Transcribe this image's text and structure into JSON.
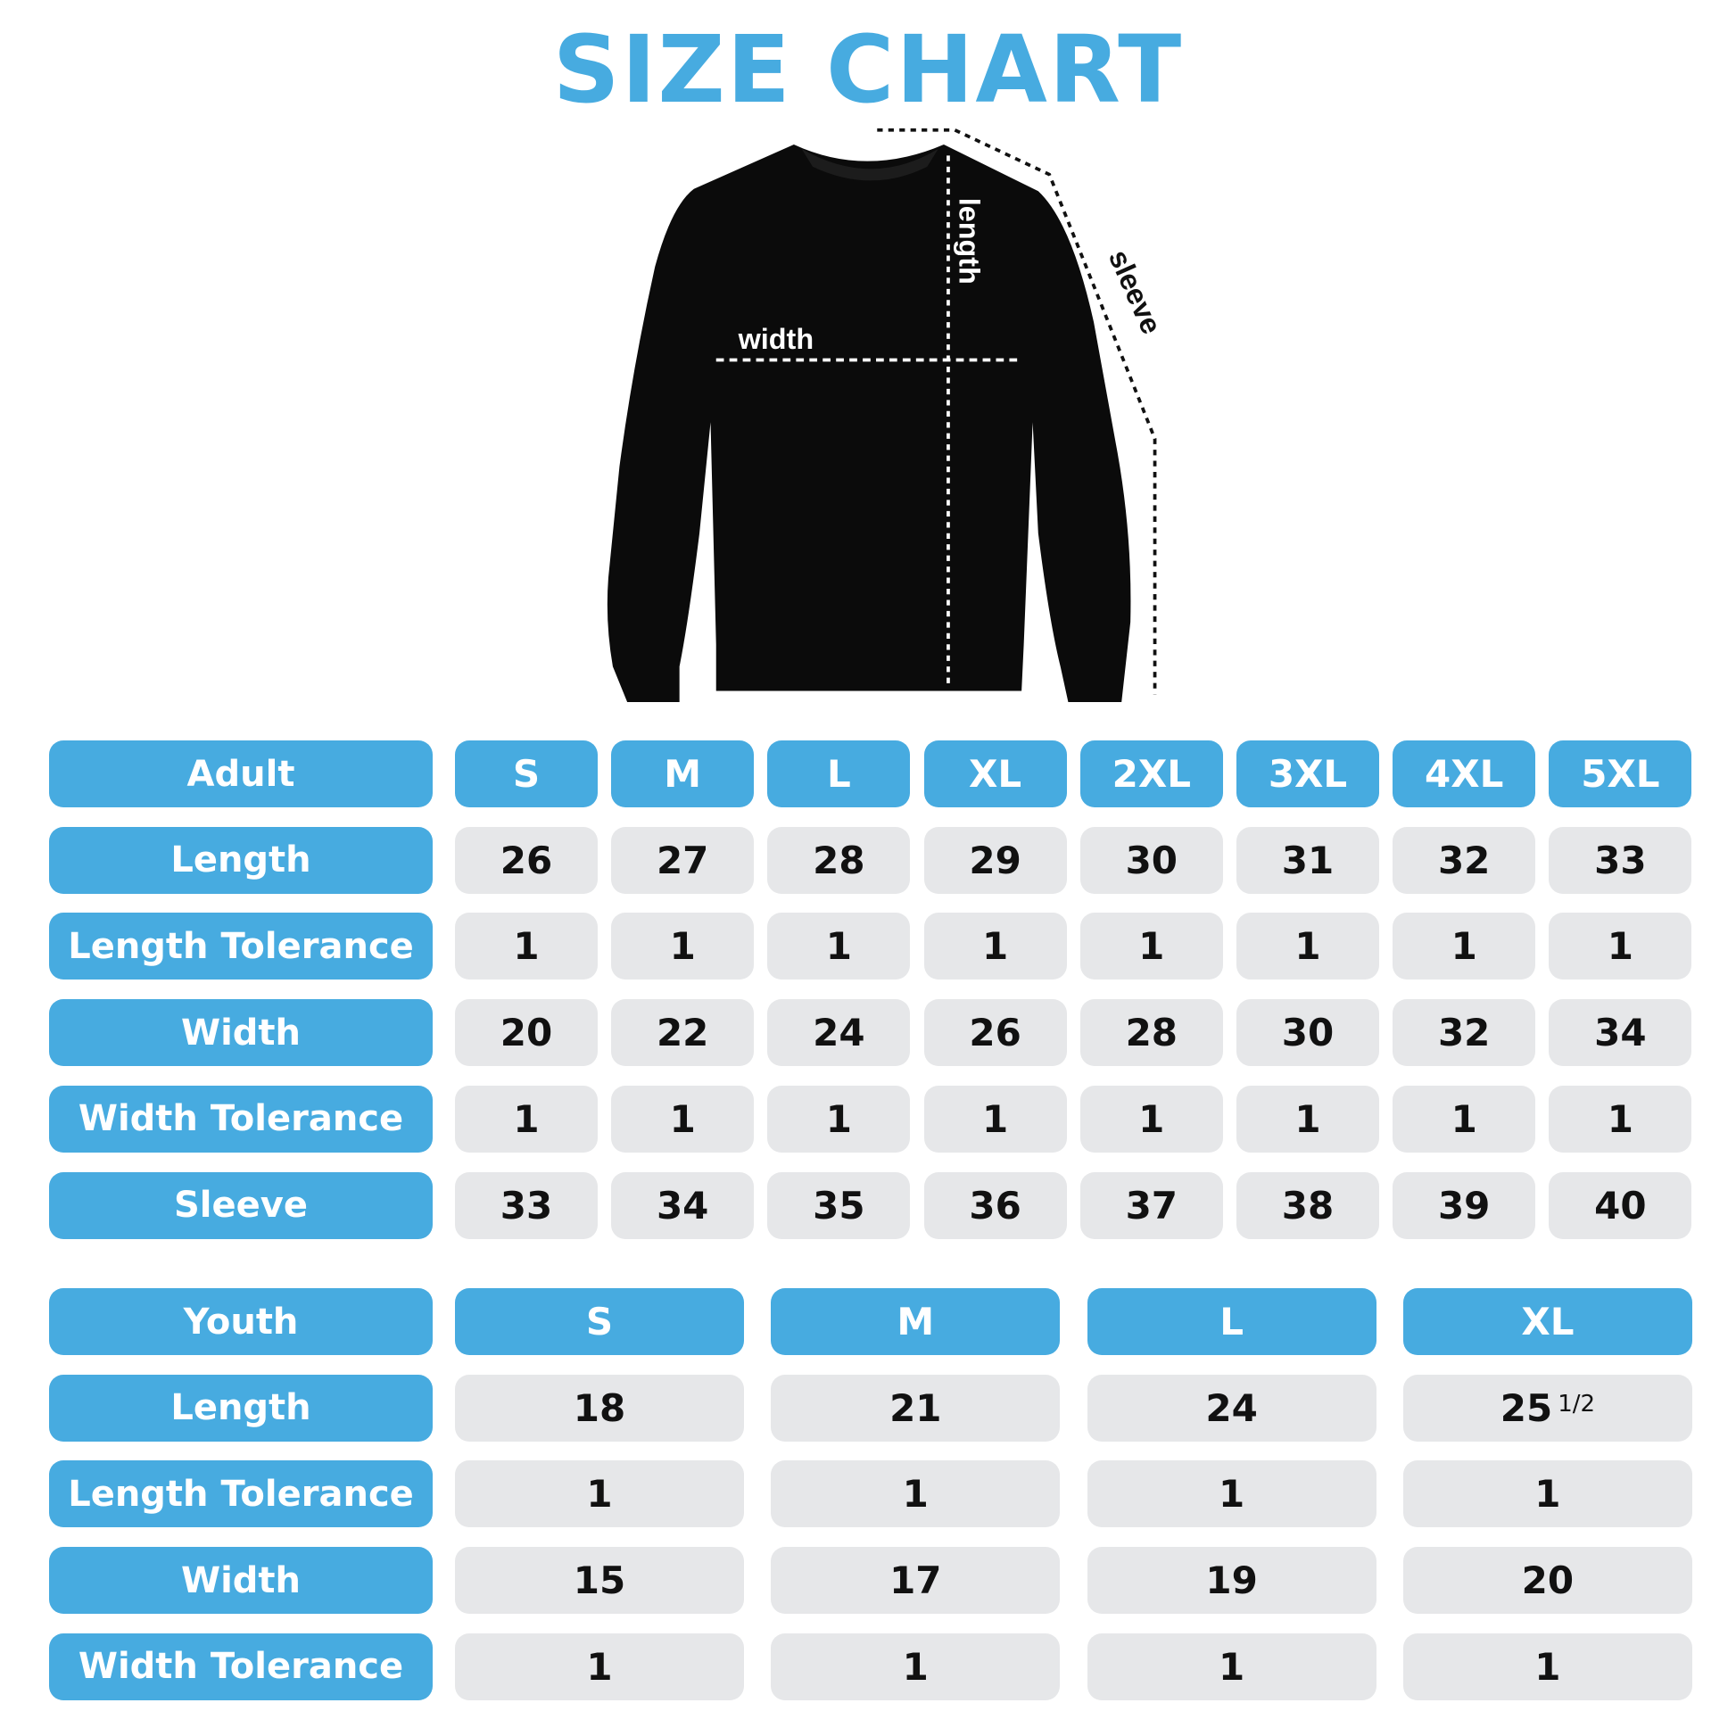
{
  "title": "SIZE CHART",
  "colors": {
    "accent": "#47ABE0",
    "cell_bg": "#E6E7E9",
    "text": "#111111"
  },
  "diagram": {
    "image": "black crewneck sweatshirt",
    "labels": {
      "width": "width",
      "length": "length",
      "sleeve": "sleeve"
    }
  },
  "adult": {
    "header": "Adult",
    "sizes": [
      "S",
      "M",
      "L",
      "XL",
      "2XL",
      "3XL",
      "4XL",
      "5XL"
    ],
    "rows": [
      {
        "label": "Length",
        "values": [
          "26",
          "27",
          "28",
          "29",
          "30",
          "31",
          "32",
          "33"
        ]
      },
      {
        "label": "Length Tolerance",
        "values": [
          "1",
          "1",
          "1",
          "1",
          "1",
          "1",
          "1",
          "1"
        ]
      },
      {
        "label": "Width",
        "values": [
          "20",
          "22",
          "24",
          "26",
          "28",
          "30",
          "32",
          "34"
        ]
      },
      {
        "label": "Width Tolerance",
        "values": [
          "1",
          "1",
          "1",
          "1",
          "1",
          "1",
          "1",
          "1"
        ]
      },
      {
        "label": "Sleeve",
        "values": [
          "33",
          "34",
          "35",
          "36",
          "37",
          "38",
          "39",
          "40"
        ]
      }
    ]
  },
  "youth": {
    "header": "Youth",
    "sizes": [
      "S",
      "M",
      "L",
      "XL"
    ],
    "rows": [
      {
        "label": "Length",
        "values": [
          "18",
          "21",
          "24",
          "25 1/2"
        ]
      },
      {
        "label": "Length Tolerance",
        "values": [
          "1",
          "1",
          "1",
          "1"
        ]
      },
      {
        "label": "Width",
        "values": [
          "15",
          "17",
          "19",
          "20"
        ]
      },
      {
        "label": "Width Tolerance",
        "values": [
          "1",
          "1",
          "1",
          "1"
        ]
      }
    ]
  }
}
